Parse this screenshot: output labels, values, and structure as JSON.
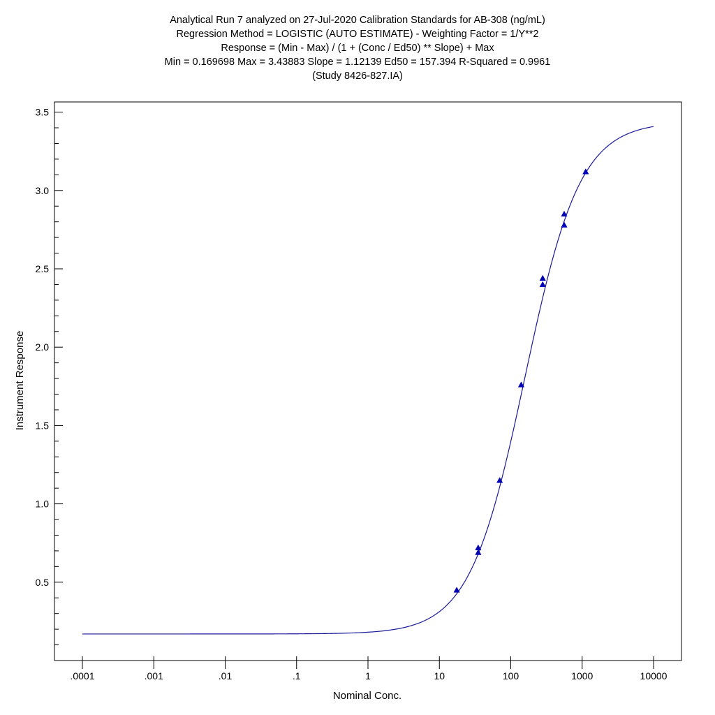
{
  "chart_data": {
    "type": "scatter",
    "title_lines": [
      "Analytical Run 7 analyzed on 27-Jul-2020 Calibration Standards for AB-308 (ng/mL)",
      "Regression Method = LOGISTIC (AUTO ESTIMATE) - Weighting Factor = 1/Y**2",
      "Response = (Min - Max) / (1 + (Conc / Ed50) ** Slope) + Max",
      "Min = 0.169698 Max = 3.43883 Slope = 1.12139 Ed50 = 157.394 R-Squared = 0.9961",
      "(Study 8426-827.IA)"
    ],
    "xlabel": "Nominal Conc.",
    "ylabel": "Instrument Response",
    "x_scale": "log",
    "xlim": [
      0.0001,
      10000
    ],
    "ylim": [
      0.0,
      3.565
    ],
    "x_ticks": [
      0.0001,
      0.001,
      0.01,
      0.1,
      1,
      10,
      100,
      1000,
      10000
    ],
    "x_tick_labels": [
      ".0001",
      ".001",
      ".01",
      ".1",
      "1",
      "10",
      "100",
      "1000",
      "10000"
    ],
    "y_ticks": [
      0.5,
      1.0,
      1.5,
      2.0,
      2.5,
      3.0,
      3.5
    ],
    "y_tick_labels": [
      "0.5",
      "1.0",
      "1.5",
      "2.0",
      "2.5",
      "3.0",
      "3.5"
    ],
    "fit": {
      "model": "logistic",
      "min": 0.169698,
      "max": 3.43883,
      "slope": 1.12139,
      "ed50": 157.394,
      "r_squared": 0.9961,
      "x_range": [
        0.0001,
        10000
      ]
    },
    "series": [
      {
        "marker": "triangle",
        "color": "#0000b4",
        "x": [
          17.5,
          35,
          35,
          70,
          140,
          280,
          280,
          560,
          560,
          1120
        ],
        "y": [
          0.45,
          0.69,
          0.72,
          1.15,
          1.76,
          2.4,
          2.44,
          2.78,
          2.85,
          3.12
        ]
      }
    ],
    "grid": false,
    "curve_color": "#1a1a9a",
    "marker_color": "#0000b4"
  }
}
